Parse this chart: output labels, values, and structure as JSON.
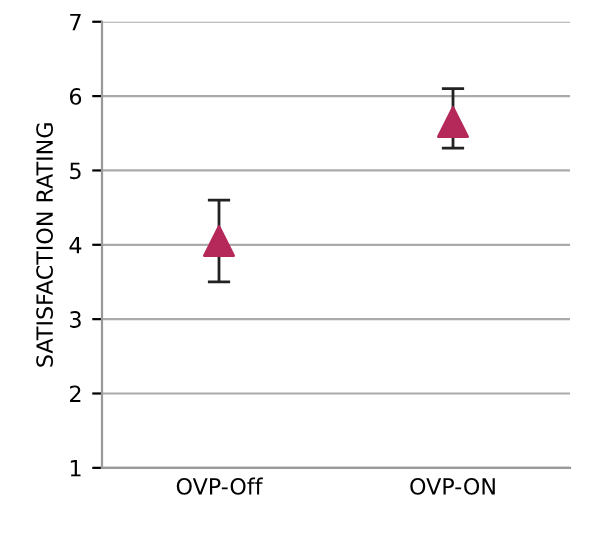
{
  "chart_data": {
    "type": "scatter",
    "ylabel": "SATISFACTION RATING",
    "categories": [
      "OVP-Off",
      "OVP-ON"
    ],
    "series": [
      {
        "color": "#b5285a",
        "values": [
          4.05,
          5.65
        ],
        "errors": [
          [
            3.5,
            4.6
          ],
          [
            5.3,
            6.1
          ]
        ]
      }
    ],
    "ylim": [
      1,
      7
    ],
    "yticks": [
      1,
      2,
      3,
      4,
      5,
      6,
      7
    ],
    "grid": "y",
    "marker": "triangle",
    "legend": false
  }
}
